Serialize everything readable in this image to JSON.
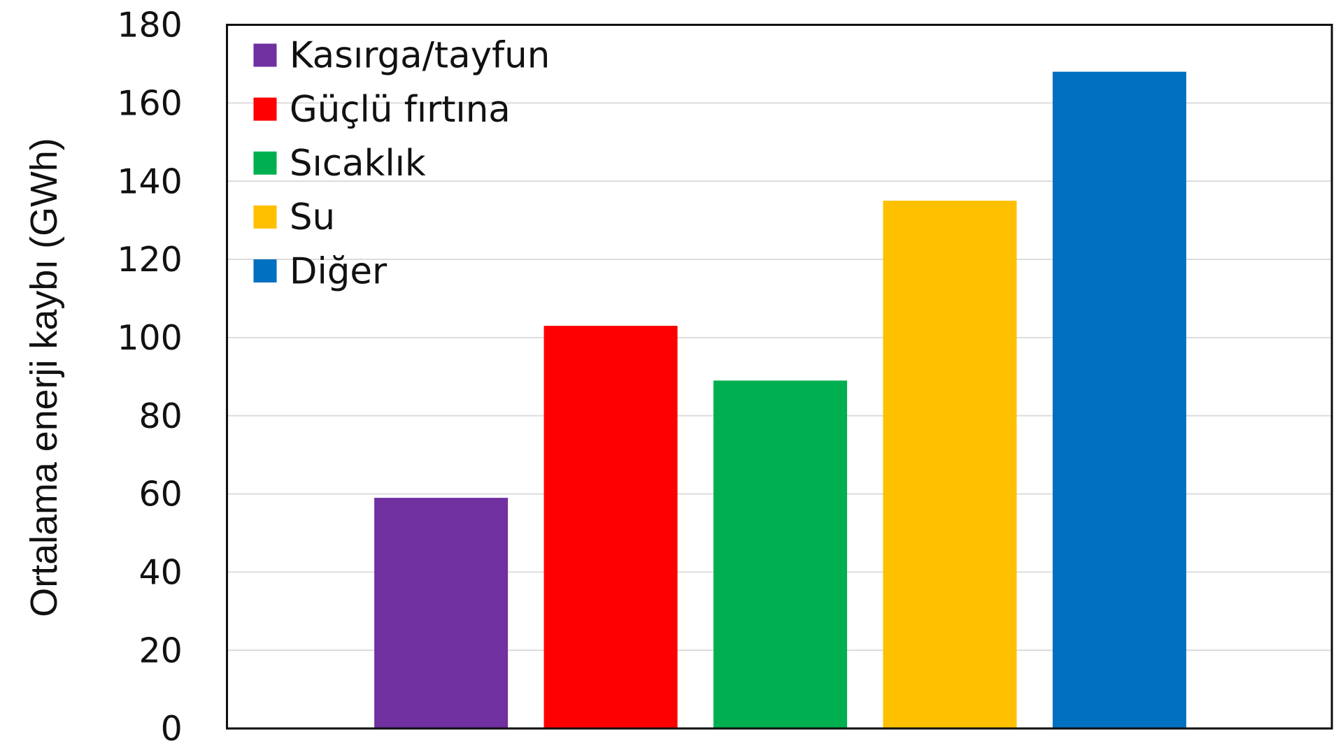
{
  "chart_data": {
    "type": "bar",
    "title": "",
    "xlabel": "",
    "ylabel": "Ortalama enerji kaybı (GWh)",
    "ylim": [
      0,
      180
    ],
    "yticks": [
      "0",
      "20",
      "40",
      "60",
      "80",
      "100",
      "120",
      "140",
      "160",
      "180"
    ],
    "grid": true,
    "legend_position": "top-left",
    "categories": [
      "Kasırga/tayfun",
      "Güçlü fırtına",
      "Sıcaklık",
      "Su",
      "Diğer"
    ],
    "values": [
      59,
      103,
      89,
      135,
      168
    ],
    "colors": [
      "#7030A0",
      "#FF0000",
      "#00B050",
      "#FFC000",
      "#0070C0"
    ]
  }
}
